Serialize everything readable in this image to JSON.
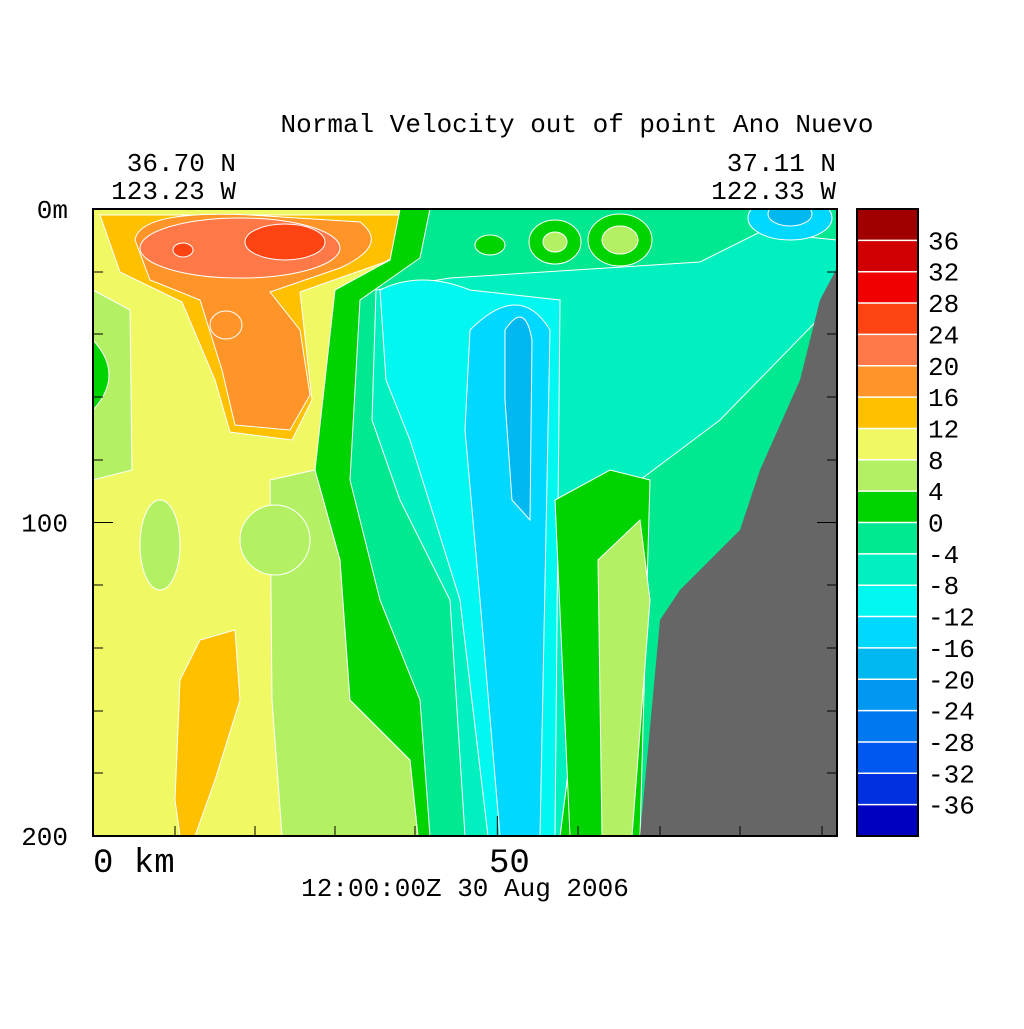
{
  "chart_data": {
    "type": "contour",
    "title": "Normal Velocity out of point Ano Nuevo",
    "left_header": [
      "36.70 N",
      "123.23 W"
    ],
    "right_header": [
      "37.11 N",
      "122.33 W"
    ],
    "caption": "12:00:00Z  30 Aug 2006",
    "xlim": [
      0,
      92
    ],
    "xticks": [
      {
        "value": 0,
        "label": "0 km"
      },
      50
    ],
    "ylim": [
      0,
      200
    ],
    "yticks": [
      {
        "value": 0,
        "label": "0m"
      },
      100,
      200
    ],
    "colorbar": {
      "levels": [
        -40,
        -36,
        -32,
        -28,
        -24,
        -20,
        -16,
        -12,
        -8,
        -4,
        0,
        4,
        8,
        12,
        16,
        20,
        24,
        28,
        32,
        36,
        40
      ],
      "ticks": [
        -36,
        -32,
        -28,
        -24,
        -20,
        -16,
        -12,
        -8,
        -4,
        0,
        4,
        8,
        12,
        16,
        20,
        24,
        28,
        32,
        36
      ],
      "colors": [
        "#0000c0",
        "#0030e0",
        "#0058f0",
        "#0078f0",
        "#0098f0",
        "#00b8f0",
        "#00d8ff",
        "#00f8f0",
        "#00f0c0",
        "#00e890",
        "#00d400",
        "#b4f064",
        "#f0f864",
        "#ffc000",
        "#ff9428",
        "#ff7848",
        "#ff4414",
        "#f00000",
        "#d00000",
        "#a00000"
      ]
    }
  }
}
